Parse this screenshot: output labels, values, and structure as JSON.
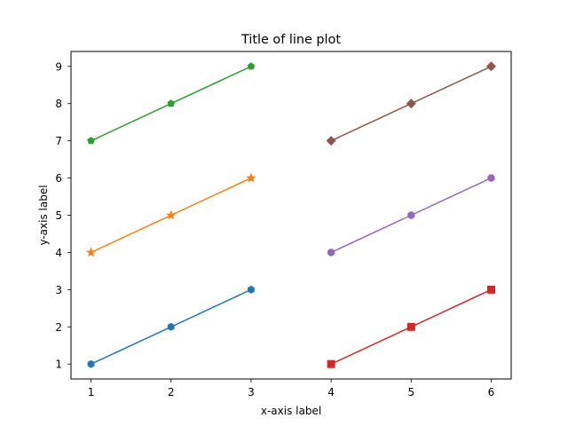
{
  "chart_data": {
    "type": "line",
    "title": "Title of line plot",
    "xlabel": "x-axis label",
    "ylabel": "y-axis label",
    "xlim": [
      0.75,
      6.25
    ],
    "ylim": [
      0.6,
      9.4
    ],
    "xticks": [
      1,
      2,
      3,
      4,
      5,
      6
    ],
    "yticks": [
      1,
      2,
      3,
      4,
      5,
      6,
      7,
      8,
      9
    ],
    "grid": false,
    "legend": null,
    "series": [
      {
        "x": [
          1,
          2,
          3
        ],
        "y": [
          1,
          2,
          3
        ],
        "color": "#1f77b4",
        "marker": "hexagon"
      },
      {
        "x": [
          1,
          2,
          3
        ],
        "y": [
          4,
          5,
          6
        ],
        "color": "#ff7f0e",
        "marker": "star"
      },
      {
        "x": [
          1,
          2,
          3
        ],
        "y": [
          7,
          8,
          9
        ],
        "color": "#2ca02c",
        "marker": "pentagon"
      },
      {
        "x": [
          4,
          5,
          6
        ],
        "y": [
          1,
          2,
          3
        ],
        "color": "#d62728",
        "marker": "square"
      },
      {
        "x": [
          4,
          5,
          6
        ],
        "y": [
          4,
          5,
          6
        ],
        "color": "#9467bd",
        "marker": "octagon"
      },
      {
        "x": [
          4,
          5,
          6
        ],
        "y": [
          7,
          8,
          9
        ],
        "color": "#8c564b",
        "marker": "diamond"
      }
    ]
  }
}
